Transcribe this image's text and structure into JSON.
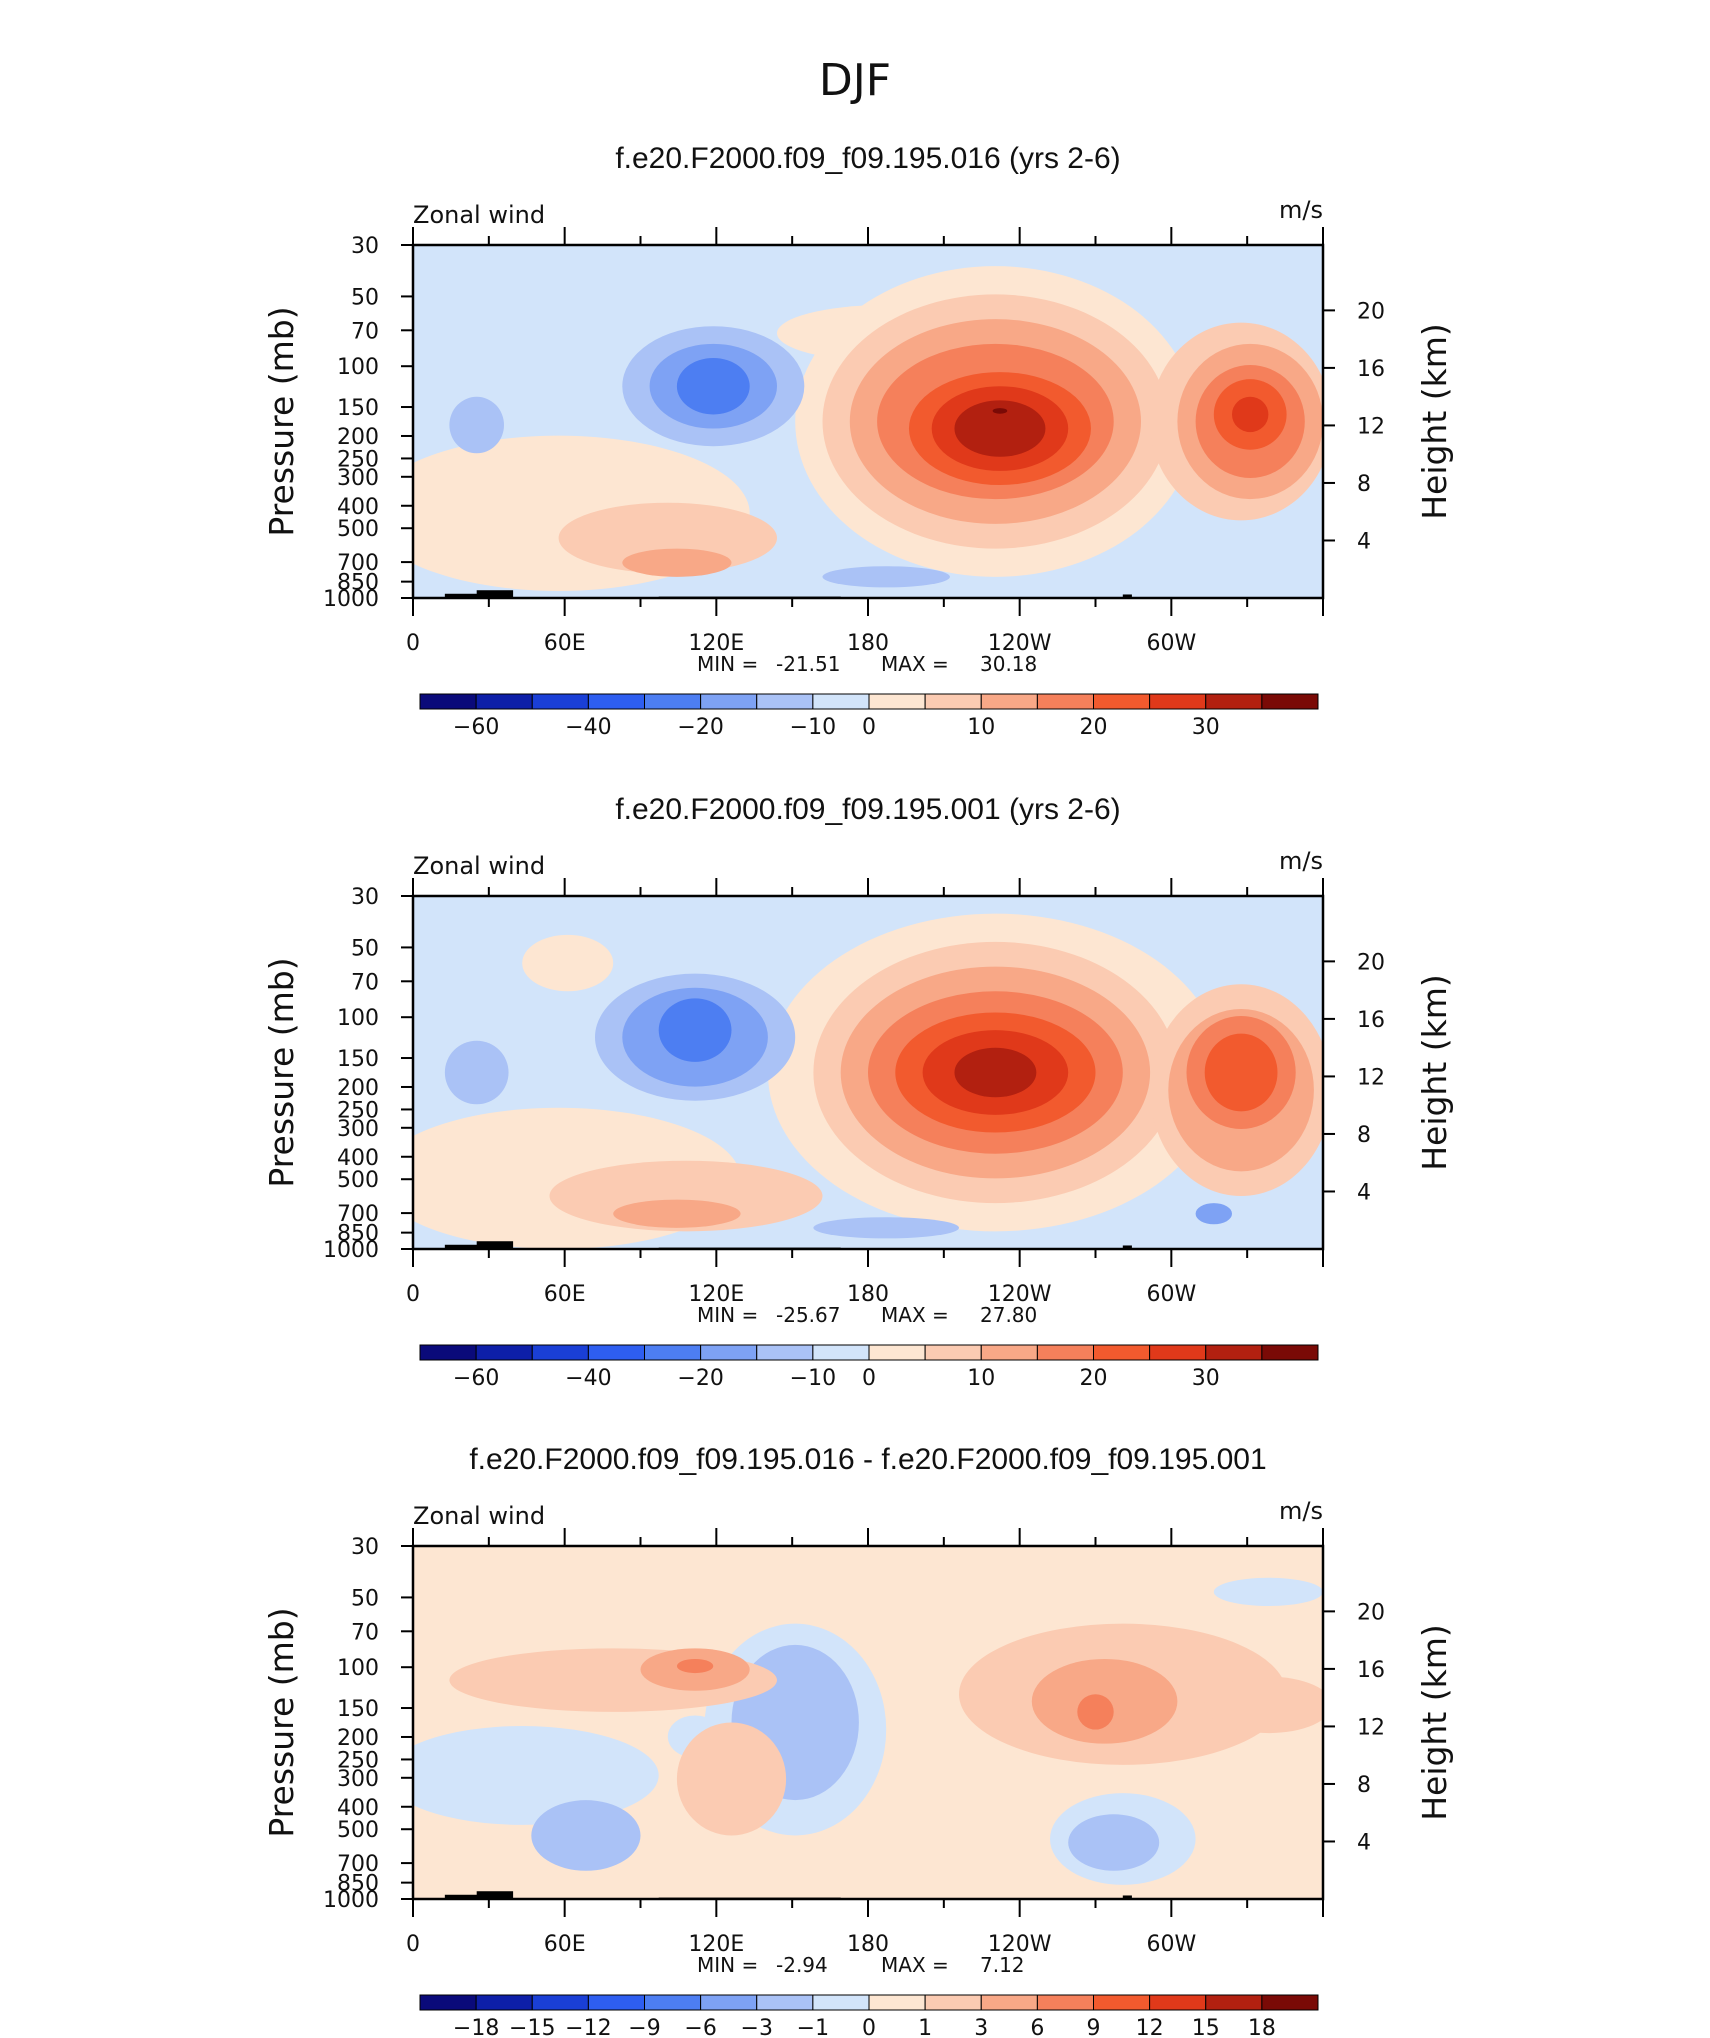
{
  "figure": {
    "title": "DJF"
  },
  "colors": {
    "blues": [
      "#0a0a7a",
      "#0d1fa8",
      "#1a3fd6",
      "#2e5ef0",
      "#4d7ef2",
      "#7ea2f4",
      "#aac2f6",
      "#d2e4fa"
    ],
    "reds": [
      "#fde6d2",
      "#fbcbb2",
      "#f8a887",
      "#f5805b",
      "#f25a2e",
      "#e0391a",
      "#b22010",
      "#7a0a06"
    ],
    "topography": "#000000"
  },
  "chart_data": [
    {
      "type": "heatmap",
      "title": "f.e20.F2000.f09_f09.195.016 (yrs 2-6)",
      "label_left": "Zonal wind",
      "label_right": "m/s",
      "ylabel": "Pressure (mb)",
      "ylabel_right": "Height (km)",
      "xticks": [
        "0",
        "60E",
        "120E",
        "180",
        "120W",
        "60W"
      ],
      "yticks": [
        30,
        50,
        70,
        100,
        150,
        200,
        250,
        300,
        400,
        500,
        700,
        850,
        1000
      ],
      "yticks_right": [
        4,
        8,
        12,
        16,
        20
      ],
      "stats": {
        "min": "-21.51",
        "max": "30.18"
      },
      "colorbar_labels": [
        "-60",
        "-40",
        "-20",
        "-10",
        "0",
        "10",
        "20",
        "30"
      ],
      "colorbar_bins": 16
    },
    {
      "type": "heatmap",
      "title": "f.e20.F2000.f09_f09.195.001 (yrs 2-6)",
      "label_left": "Zonal wind",
      "label_right": "m/s",
      "ylabel": "Pressure (mb)",
      "ylabel_right": "Height (km)",
      "xticks": [
        "0",
        "60E",
        "120E",
        "180",
        "120W",
        "60W"
      ],
      "yticks": [
        30,
        50,
        70,
        100,
        150,
        200,
        250,
        300,
        400,
        500,
        700,
        850,
        1000
      ],
      "yticks_right": [
        4,
        8,
        12,
        16,
        20
      ],
      "stats": {
        "min": "-25.67",
        "max": "27.80"
      },
      "colorbar_labels": [
        "-60",
        "-40",
        "-20",
        "-10",
        "0",
        "10",
        "20",
        "30"
      ],
      "colorbar_bins": 16
    },
    {
      "type": "heatmap",
      "title": "f.e20.F2000.f09_f09.195.016 - f.e20.F2000.f09_f09.195.001",
      "label_left": "Zonal wind",
      "label_right": "m/s",
      "ylabel": "Pressure (mb)",
      "ylabel_right": "Height (km)",
      "xticks": [
        "0",
        "60E",
        "120E",
        "180",
        "120W",
        "60W"
      ],
      "yticks": [
        30,
        50,
        70,
        100,
        150,
        200,
        250,
        300,
        400,
        500,
        700,
        850,
        1000
      ],
      "yticks_right": [
        4,
        8,
        12,
        16,
        20
      ],
      "stats": {
        "min": "-2.94",
        "max": "7.12"
      },
      "colorbar_labels": [
        "-18",
        "-15",
        "-12",
        "-9",
        "-6",
        "-3",
        "-1",
        "0",
        "1",
        "3",
        "6",
        "9",
        "12",
        "15",
        "18"
      ],
      "colorbar_bins": 16
    }
  ],
  "stat_labels": {
    "min": "MIN =",
    "max": "MAX ="
  }
}
